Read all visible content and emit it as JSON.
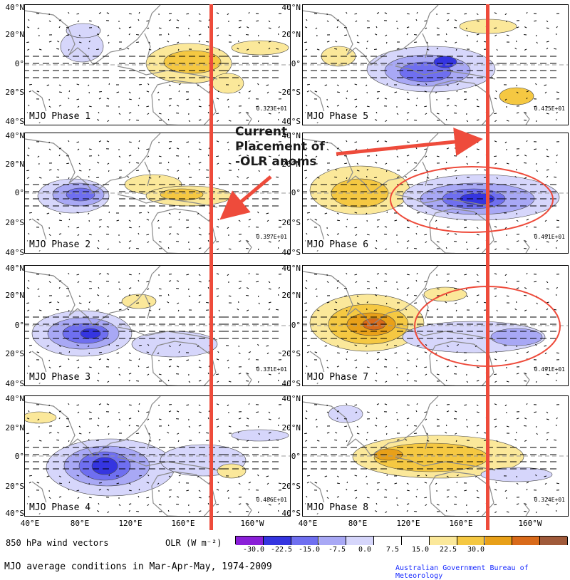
{
  "panels": [
    {
      "id": "p1",
      "label": "MJO Phase 1",
      "scale": "0.323E+01"
    },
    {
      "id": "p2",
      "label": "MJO Phase 2",
      "scale": "0.357E+01"
    },
    {
      "id": "p3",
      "label": "MJO Phase 3",
      "scale": "0.331E+01"
    },
    {
      "id": "p4",
      "label": "MJO Phase 4",
      "scale": "0.486E+01"
    },
    {
      "id": "p5",
      "label": "MJO Phase 5",
      "scale": "0.415E+01"
    },
    {
      "id": "p6",
      "label": "MJO Phase 6",
      "scale": "0.491E+01"
    },
    {
      "id": "p7",
      "label": "MJO Phase 7",
      "scale": "0.491E+01"
    },
    {
      "id": "p8",
      "label": "MJO Phase 8",
      "scale": "0.324E+01"
    }
  ],
  "lat_labels": [
    "40°N",
    "20°N",
    "0°",
    "20°S",
    "40°S"
  ],
  "lon_labels": [
    "40°E",
    "80°E",
    "120°E",
    "160°E",
    "160°W"
  ],
  "annotation": {
    "line1": "Current",
    "line2": "Placement of",
    "line3": "-OLR anoms"
  },
  "colorbar": {
    "label": "OLR (W m⁻²)",
    "ticks": [
      "-30.0",
      "-22.5",
      "-15.0",
      "-7.5",
      "0.0",
      "7.5",
      "15.0",
      "22.5",
      "30.0"
    ],
    "colors": [
      "#8a1fd8",
      "#3535e0",
      "#6f6ff0",
      "#a8a8f5",
      "#d6d6fb",
      "#ffffff",
      "#ffffff",
      "#fbe89a",
      "#f5c842",
      "#e8a019",
      "#d96a1a",
      "#a05a3a"
    ]
  },
  "wind_label": "850 hPa wind vectors",
  "title": "MJO average conditions in Mar-Apr-May, 1974-2009",
  "credit": "Australian Government Bureau of Meteorology",
  "colors": {
    "red": "#ee4b3b",
    "neg1": "#d6d6fb",
    "neg2": "#a8a8f5",
    "neg3": "#6f6ff0",
    "neg4": "#3535e0",
    "pos1": "#fbe89a",
    "pos2": "#f5c842",
    "pos3": "#e8a019",
    "pos4": "#d96a1a"
  }
}
